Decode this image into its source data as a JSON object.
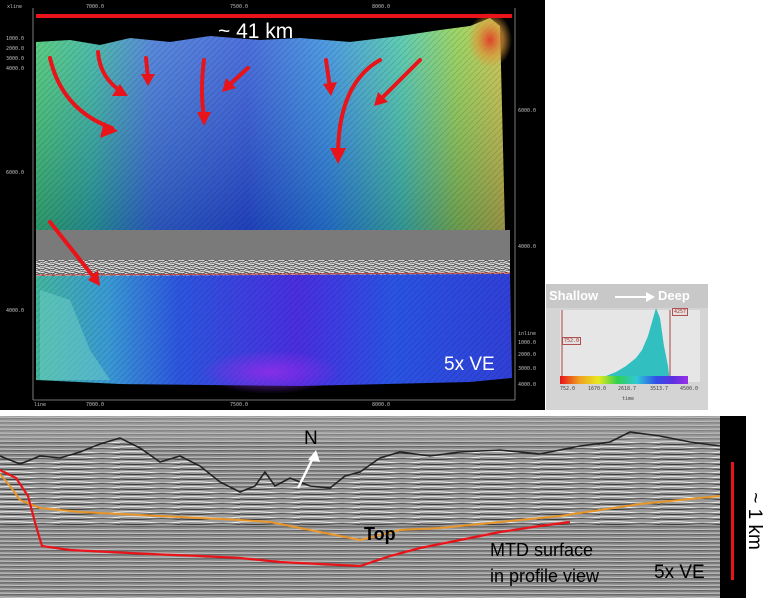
{
  "top_map": {
    "axis_top_label": "xline",
    "axis_top_ticks": [
      "7000.0",
      "7500.0",
      "8000.0"
    ],
    "axis_bottom_label": "line",
    "axis_bottom_ticks": [
      "7000.0",
      "7500.0",
      "8000.0"
    ],
    "axis_left_ticks_upper": [
      "1000.0",
      "2000.0",
      "3000.0",
      "4000.0"
    ],
    "axis_left_mid_upper": "6000.0",
    "axis_left_mid_lower": "4000.0",
    "axis_right_upper": "6000.0",
    "axis_right_mid": "4000.0",
    "axis_right_label": "inline",
    "axis_right_ticks_lower": [
      "1000.0",
      "2000.0",
      "3000.0",
      "4000.0"
    ],
    "width_label": "~ 41 km",
    "ve_label": "5x VE"
  },
  "legend": {
    "shallow_label": "Shallow",
    "deep_label": "Deep",
    "min_marker": "752.0",
    "max_marker": "4257",
    "ticks": [
      "752.0",
      "1670.0",
      "2618.7",
      "3513.7",
      "4500.0"
    ],
    "bottom_label": "time"
  },
  "profile": {
    "north_label": "N",
    "top_label": "Top",
    "mtd_label_line1": "MTD surface",
    "mtd_label_line2": "in profile view",
    "ve_label": "5x VE",
    "scale_label": "~ 1 km"
  },
  "colors": {
    "arrow": "#e8141a",
    "mtd_line": "#e8141a",
    "top_line": "#e8962a"
  }
}
